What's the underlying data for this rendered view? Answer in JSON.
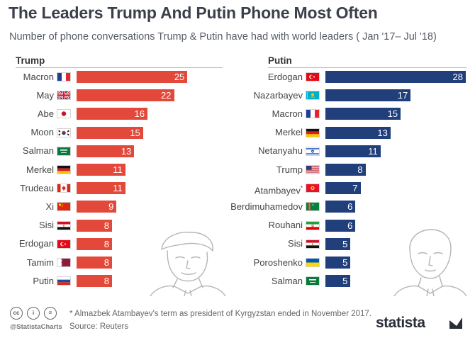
{
  "title": "The Leaders Trump And Putin Phone Most Often",
  "subtitle": "Number of phone conversations Trump & Putin have had with world leaders ( Jan '17– Jul '18)",
  "colors": {
    "trump_bar": "#e2493b",
    "putin_bar": "#203f7b"
  },
  "chart_data": [
    {
      "type": "bar",
      "orientation": "horizontal",
      "title": "Trump",
      "categories": [
        "Macron",
        "May",
        "Abe",
        "Moon",
        "Salman",
        "Merkel",
        "Trudeau",
        "Xi",
        "Sisi",
        "Erdogan",
        "Tamim",
        "Putin"
      ],
      "values": [
        25,
        22,
        16,
        15,
        13,
        11,
        11,
        9,
        8,
        8,
        8,
        8
      ],
      "flags": [
        "france",
        "uk",
        "japan",
        "south-korea",
        "saudi-arabia",
        "germany",
        "canada",
        "china",
        "egypt",
        "turkey",
        "qatar",
        "russia"
      ],
      "xlim": [
        0,
        28
      ]
    },
    {
      "type": "bar",
      "orientation": "horizontal",
      "title": "Putin",
      "categories": [
        "Erdogan",
        "Nazarbayev",
        "Macron",
        "Merkel",
        "Netanyahu",
        "Trump",
        "Atambayev",
        "Berdimuhamedov",
        "Rouhani",
        "Sisi",
        "Poroshenko",
        "Salman"
      ],
      "category_notes": [
        "",
        "",
        "",
        "",
        "",
        "",
        "*",
        "",
        "",
        "",
        "",
        ""
      ],
      "values": [
        28,
        17,
        15,
        13,
        11,
        8,
        7,
        6,
        6,
        5,
        5,
        5
      ],
      "flags": [
        "turkey",
        "kazakhstan",
        "france",
        "germany",
        "israel",
        "usa",
        "kyrgyzstan",
        "turkmenistan",
        "iran",
        "egypt",
        "ukraine",
        "saudi-arabia"
      ],
      "xlim": [
        0,
        28
      ]
    }
  ],
  "footnote": "* Almazbek Atambayev's term as president of Kyrgyzstan ended in November 2017.",
  "source": "Source: Reuters",
  "handle": "@StatistaCharts",
  "license_icons": [
    "cc-icon",
    "by-icon",
    "nd-icon"
  ],
  "license_labels": [
    "cc",
    "i",
    "="
  ],
  "brand": "statista"
}
